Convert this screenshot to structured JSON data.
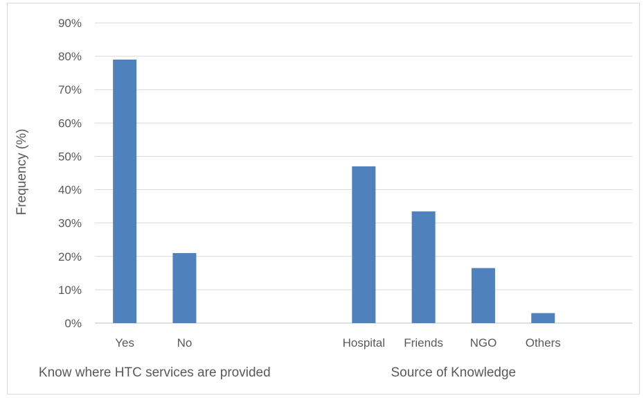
{
  "chart_data": {
    "type": "bar",
    "title": "",
    "ylabel": "Frequency (%)",
    "ylim": [
      0,
      90
    ],
    "yticks": [
      "0%",
      "10%",
      "20%",
      "30%",
      "40%",
      "50%",
      "60%",
      "70%",
      "80%",
      "90%"
    ],
    "grid": true,
    "bar_color": "#4f81bd",
    "groups": [
      {
        "label": "Know where HTC services are provided",
        "categories": [
          "Yes",
          "No"
        ],
        "values": [
          79,
          21
        ]
      },
      {
        "label": "Source of Knowledge",
        "categories": [
          "Hospital",
          "Friends",
          "NGO",
          "Others"
        ],
        "values": [
          47,
          33.5,
          16.5,
          3
        ]
      }
    ]
  }
}
